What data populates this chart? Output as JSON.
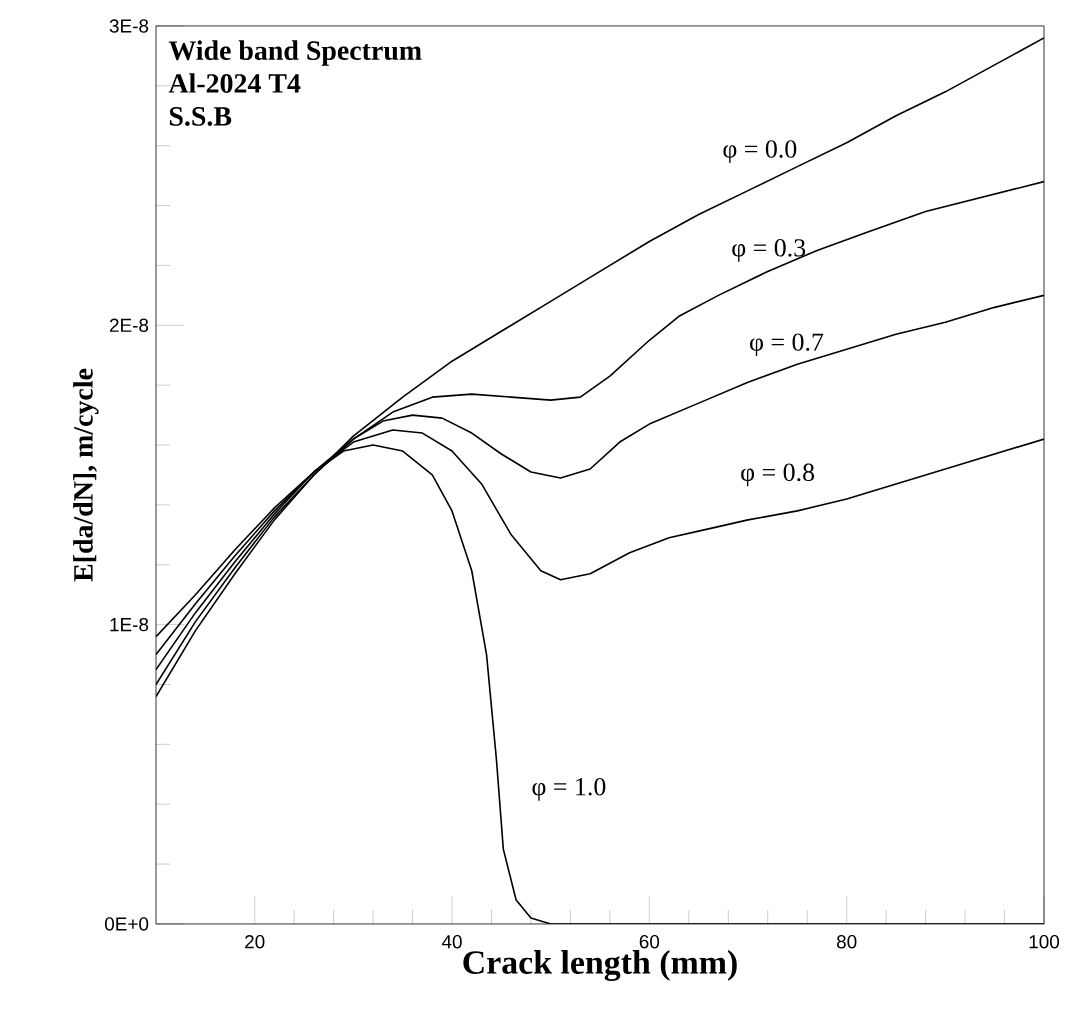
{
  "chart_data": {
    "type": "line",
    "title": "Wide band Spectrum",
    "subtitle": "Al-2024 T4",
    "annotations": [
      "S.S.B"
    ],
    "xlabel": "Crack length (mm)",
    "ylabel": "E[da/dN], m/cycle",
    "xlim": [
      10,
      100
    ],
    "ylim": [
      0,
      3e-08
    ],
    "xticks": [
      20,
      40,
      60,
      80,
      100
    ],
    "yticks": [
      {
        "value": 0,
        "label": "0E+0"
      },
      {
        "value": 1e-08,
        "label": "1E-8"
      },
      {
        "value": 2e-08,
        "label": "2E-8"
      },
      {
        "value": 3e-08,
        "label": "3E-8"
      }
    ],
    "series": [
      {
        "name": "φ = 0.0",
        "color": "#000000",
        "x": [
          10,
          14,
          18,
          22,
          26,
          30,
          35,
          40,
          45,
          50,
          55,
          60,
          65,
          70,
          75,
          80,
          85,
          90,
          95,
          100
        ],
        "values": [
          7.6e-09,
          9.8e-09,
          1.17e-08,
          1.35e-08,
          1.5e-08,
          1.63e-08,
          1.76e-08,
          1.88e-08,
          1.98e-08,
          2.08e-08,
          2.18e-08,
          2.28e-08,
          2.37e-08,
          2.45e-08,
          2.53e-08,
          2.61e-08,
          2.7e-08,
          2.78e-08,
          2.87e-08,
          2.96e-08
        ]
      },
      {
        "name": "φ = 0.3",
        "color": "#000000",
        "x": [
          10,
          14,
          18,
          22,
          26,
          30,
          34,
          38,
          42,
          46,
          50,
          53,
          56,
          60,
          63,
          67,
          72,
          77,
          82,
          88,
          94,
          100
        ],
        "values": [
          8e-09,
          1.01e-08,
          1.19e-08,
          1.36e-08,
          1.5e-08,
          1.62e-08,
          1.71e-08,
          1.76e-08,
          1.77e-08,
          1.76e-08,
          1.75e-08,
          1.76e-08,
          1.83e-08,
          1.95e-08,
          2.03e-08,
          2.1e-08,
          2.18e-08,
          2.25e-08,
          2.31e-08,
          2.38e-08,
          2.43e-08,
          2.48e-08
        ]
      },
      {
        "name": "φ = 0.7",
        "color": "#000000",
        "x": [
          10,
          14,
          18,
          22,
          26,
          30,
          33,
          36,
          39,
          42,
          45,
          48,
          51,
          54,
          57,
          60,
          65,
          70,
          75,
          80,
          85,
          90,
          95,
          100
        ],
        "values": [
          8.5e-09,
          1.04e-08,
          1.21e-08,
          1.37e-08,
          1.51e-08,
          1.62e-08,
          1.68e-08,
          1.7e-08,
          1.69e-08,
          1.64e-08,
          1.57e-08,
          1.51e-08,
          1.49e-08,
          1.52e-08,
          1.61e-08,
          1.67e-08,
          1.74e-08,
          1.81e-08,
          1.87e-08,
          1.92e-08,
          1.97e-08,
          2.01e-08,
          2.06e-08,
          2.1e-08
        ]
      },
      {
        "name": "φ = 0.8",
        "color": "#000000",
        "x": [
          10,
          14,
          18,
          22,
          26,
          30,
          34,
          37,
          40,
          43,
          46,
          49,
          51,
          54,
          58,
          62,
          66,
          70,
          75,
          80,
          85,
          90,
          95,
          100
        ],
        "values": [
          9e-09,
          1.07e-08,
          1.23e-08,
          1.38e-08,
          1.51e-08,
          1.61e-08,
          1.65e-08,
          1.64e-08,
          1.58e-08,
          1.47e-08,
          1.3e-08,
          1.18e-08,
          1.15e-08,
          1.17e-08,
          1.24e-08,
          1.29e-08,
          1.32e-08,
          1.35e-08,
          1.38e-08,
          1.42e-08,
          1.47e-08,
          1.52e-08,
          1.57e-08,
          1.62e-08
        ]
      },
      {
        "name": "φ = 1.0",
        "color": "#000000",
        "x": [
          10,
          14,
          18,
          22,
          26,
          29,
          32,
          35,
          38,
          40,
          42,
          43.5,
          44.5,
          45.2,
          46.5,
          48,
          50,
          60,
          80,
          100
        ],
        "values": [
          9.6e-09,
          1.1e-08,
          1.25e-08,
          1.39e-08,
          1.51e-08,
          1.58e-08,
          1.6e-08,
          1.58e-08,
          1.5e-08,
          1.38e-08,
          1.18e-08,
          9e-09,
          5.5e-09,
          2.5e-09,
          8e-10,
          2e-10,
          0,
          0,
          0,
          0
        ]
      }
    ]
  }
}
